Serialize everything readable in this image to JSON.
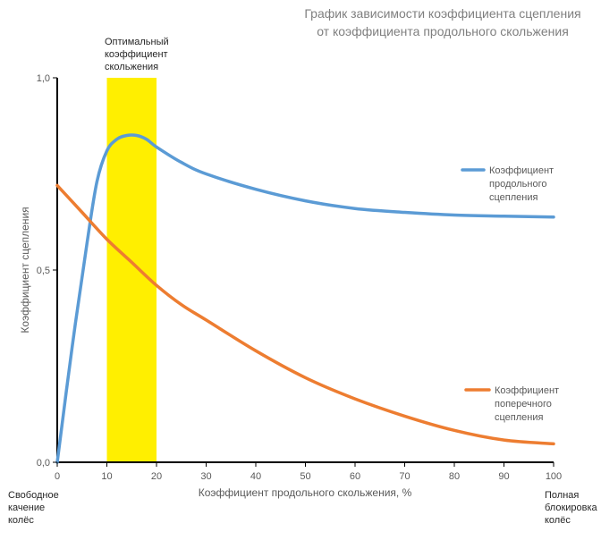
{
  "chart_data": {
    "type": "line",
    "title_lines": [
      "График зависимости коэффициента сцепления",
      "от коэффициента продольного скольжения"
    ],
    "xlabel": "Коэффициент продольного скольжения, %",
    "ylabel": "Коэффициент сцепления",
    "xlim": [
      0,
      100
    ],
    "ylim": [
      0,
      1
    ],
    "x_ticks": [
      0,
      10,
      20,
      30,
      40,
      50,
      60,
      70,
      80,
      90,
      100
    ],
    "x_tick_labels": [
      "0",
      "10",
      "20",
      "30",
      "40",
      "50",
      "60",
      "70",
      "80",
      "90",
      "100"
    ],
    "y_ticks": [
      0,
      0.5,
      1
    ],
    "y_tick_labels": [
      "0,0",
      "0,5",
      "1,0"
    ],
    "grid": false,
    "highlight_band": {
      "x_range": [
        10,
        20
      ],
      "color": "#ffef00",
      "label_lines": [
        "Оптимальный",
        "коэффициент",
        "скольжения"
      ]
    },
    "corner_labels": {
      "left_lines": [
        "Свободное",
        "качение",
        "колёс"
      ],
      "right_lines": [
        "Полная",
        "блокировка",
        "колёс"
      ]
    },
    "series": [
      {
        "name_lines": [
          "Коэффициент",
          "продольного",
          "сцепления"
        ],
        "color": "#5b9bd5",
        "x": [
          0,
          3,
          6,
          8,
          10,
          12,
          14,
          16,
          18,
          20,
          25,
          30,
          40,
          50,
          60,
          70,
          80,
          90,
          100
        ],
        "values": [
          0.0,
          0.3,
          0.57,
          0.73,
          0.81,
          0.84,
          0.85,
          0.85,
          0.84,
          0.82,
          0.78,
          0.75,
          0.71,
          0.68,
          0.66,
          0.65,
          0.643,
          0.64,
          0.638
        ]
      },
      {
        "name_lines": [
          "Коэффициент",
          "поперечного",
          "сцепления"
        ],
        "color": "#ed7d31",
        "x": [
          0,
          5,
          10,
          15,
          20,
          25,
          30,
          40,
          50,
          60,
          70,
          80,
          90,
          100
        ],
        "values": [
          0.72,
          0.65,
          0.58,
          0.52,
          0.46,
          0.41,
          0.37,
          0.29,
          0.22,
          0.165,
          0.12,
          0.083,
          0.058,
          0.048
        ]
      }
    ]
  }
}
